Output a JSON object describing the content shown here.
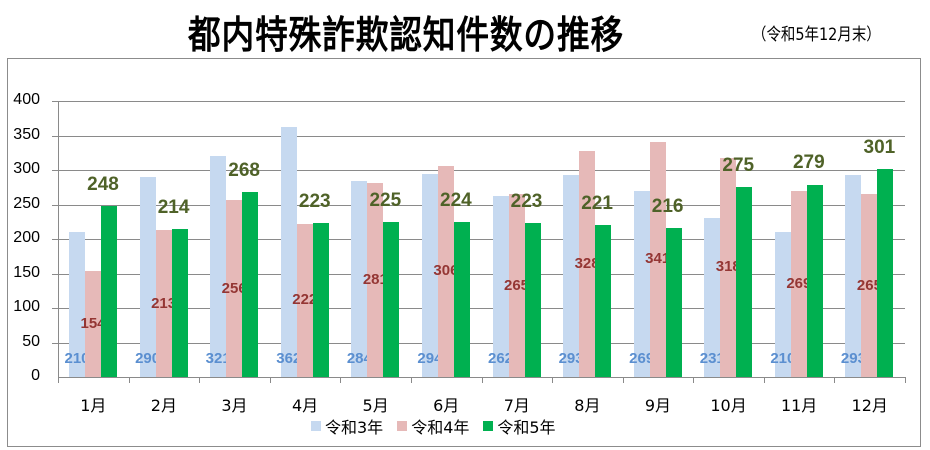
{
  "title": "都内特殊詐欺認知件数の推移",
  "subtitle": "（令和5年12月末）",
  "colors": {
    "r3": "#c6d9f0",
    "r4": "#e6b9b8",
    "r5": "#00b050",
    "label_r3": "#5b8fd0",
    "label_r4": "#943634",
    "label_r5": "#4f6228"
  },
  "chart_data": {
    "type": "bar",
    "title": "都内特殊詐欺認知件数の推移",
    "subtitle": "（令和5年12月末）",
    "xlabel": "",
    "ylabel": "",
    "ylim": [
      0,
      400
    ],
    "yticks": [
      0,
      50,
      100,
      150,
      200,
      250,
      300,
      350,
      400
    ],
    "grid": true,
    "legend_position": "bottom",
    "categories": [
      "1月",
      "2月",
      "3月",
      "4月",
      "5月",
      "6月",
      "7月",
      "8月",
      "9月",
      "10月",
      "11月",
      "12月"
    ],
    "series": [
      {
        "name": "令和3年",
        "color": "#c6d9f0",
        "values": [
          210,
          290,
          321,
          362,
          284,
          294,
          262,
          293,
          269,
          231,
          210,
          293
        ]
      },
      {
        "name": "令和4年",
        "color": "#e6b9b8",
        "values": [
          154,
          213,
          256,
          222,
          281,
          306,
          265,
          328,
          341,
          318,
          269,
          265
        ]
      },
      {
        "name": "令和5年",
        "color": "#00b050",
        "values": [
          248,
          214,
          268,
          223,
          225,
          224,
          223,
          221,
          216,
          275,
          279,
          301
        ]
      }
    ]
  }
}
